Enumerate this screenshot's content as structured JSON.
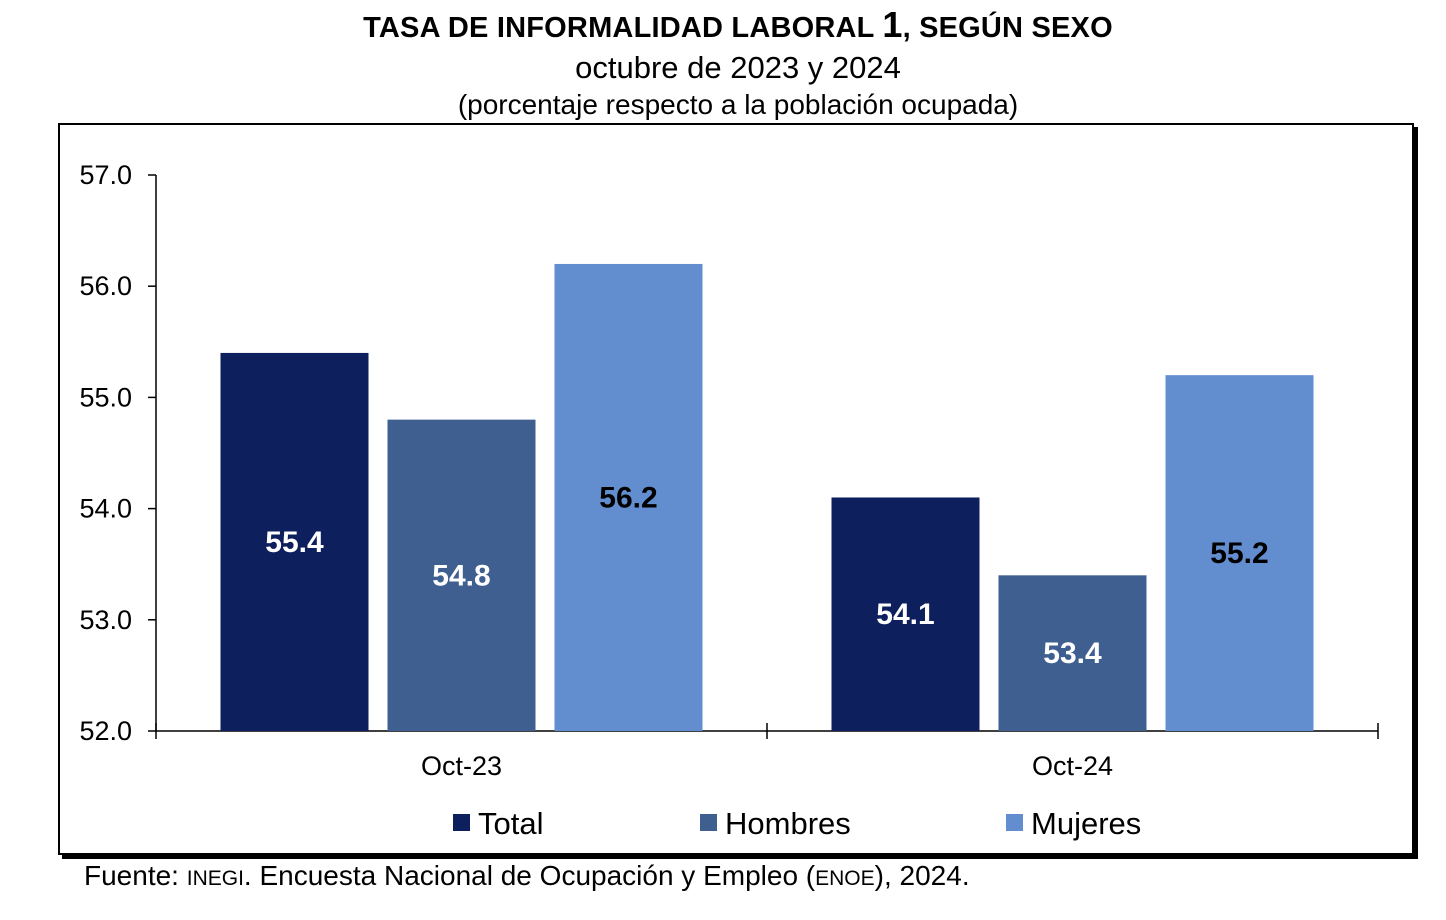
{
  "header": {
    "title_main": "TASA DE INFORMALIDAD LABORAL ",
    "title_ref": "1",
    "title_tail": ", SEGÚN SEXO",
    "subtitle": "octubre de 2023 y 2024",
    "unit_note": "(porcentaje respecto a la población ocupada)"
  },
  "footer": {
    "src_a": "Fuente: ",
    "src_b": "INEGI",
    "src_c": ". Encuesta Nacional de Ocupación y Empleo (",
    "src_d": "ENOE",
    "src_e": "), 2024."
  },
  "chart_data": {
    "type": "bar",
    "title": "TASA DE INFORMALIDAD LABORAL 1, SEGÚN SEXO",
    "subtitle": "octubre de 2023 y 2024",
    "ylabel": "(porcentaje respecto a la población ocupada)",
    "categories": [
      "Oct-23",
      "Oct-24"
    ],
    "ylim": [
      52.0,
      57.0
    ],
    "yticks": [
      "52.0",
      "53.0",
      "54.0",
      "55.0",
      "56.0",
      "57.0"
    ],
    "grid": false,
    "legend_position": "bottom",
    "series": [
      {
        "name": "Total",
        "color": "#0d1f5c",
        "label_color": "#ffffff",
        "values": [
          55.4,
          54.1
        ]
      },
      {
        "name": "Hombres",
        "color": "#3e5f90",
        "label_color": "#ffffff",
        "values": [
          54.8,
          53.4
        ]
      },
      {
        "name": "Mujeres",
        "color": "#628dcf",
        "label_color": "#000000",
        "values": [
          56.2,
          55.2
        ]
      }
    ]
  }
}
